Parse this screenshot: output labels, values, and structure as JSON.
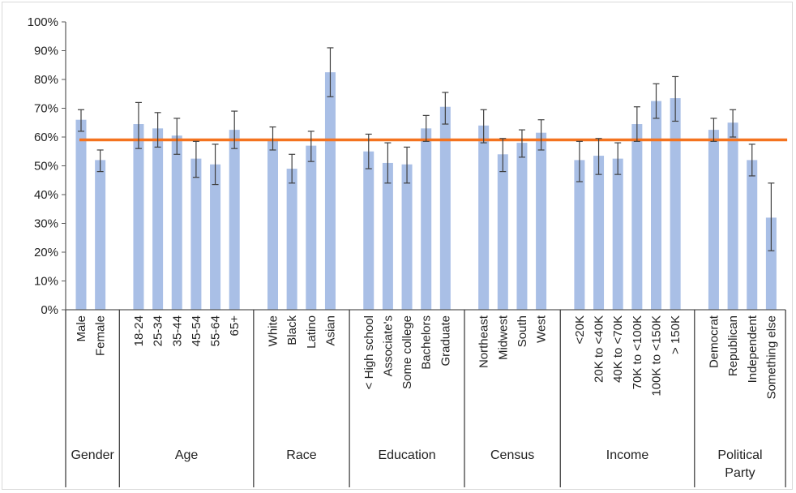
{
  "chart_data": {
    "type": "bar",
    "title": "",
    "xlabel": "",
    "ylabel": "",
    "ylim": [
      0,
      1
    ],
    "yticks": [
      "0%",
      "10%",
      "20%",
      "30%",
      "40%",
      "50%",
      "60%",
      "70%",
      "80%",
      "90%",
      "100%"
    ],
    "grid": false,
    "legend": "none",
    "reference_line": {
      "value": 0.59,
      "color": "#f4731f"
    },
    "bar_color": "#a9bfe6",
    "groups": [
      {
        "label": "Gender",
        "categories": [
          {
            "label": "Male",
            "value": 0.66,
            "err_low": 0.62,
            "err_high": 0.695
          },
          {
            "label": "Female",
            "value": 0.52,
            "err_low": 0.48,
            "err_high": 0.555
          }
        ]
      },
      {
        "label": "Age",
        "categories": [
          {
            "label": "18-24",
            "value": 0.645,
            "err_low": 0.56,
            "err_high": 0.72
          },
          {
            "label": "25-34",
            "value": 0.63,
            "err_low": 0.565,
            "err_high": 0.685
          },
          {
            "label": "35-44",
            "value": 0.605,
            "err_low": 0.54,
            "err_high": 0.665
          },
          {
            "label": "45-54",
            "value": 0.525,
            "err_low": 0.46,
            "err_high": 0.585
          },
          {
            "label": "55-64",
            "value": 0.505,
            "err_low": 0.435,
            "err_high": 0.575
          },
          {
            "label": "65+",
            "value": 0.625,
            "err_low": 0.56,
            "err_high": 0.69
          }
        ]
      },
      {
        "label": "Race",
        "categories": [
          {
            "label": "White",
            "value": 0.59,
            "err_low": 0.555,
            "err_high": 0.635
          },
          {
            "label": "Black",
            "value": 0.49,
            "err_low": 0.44,
            "err_high": 0.54
          },
          {
            "label": "Latino",
            "value": 0.57,
            "err_low": 0.515,
            "err_high": 0.62
          },
          {
            "label": "Asian",
            "value": 0.825,
            "err_low": 0.74,
            "err_high": 0.91
          }
        ]
      },
      {
        "label": "Education",
        "categories": [
          {
            "label": "< High school",
            "value": 0.55,
            "err_low": 0.49,
            "err_high": 0.61
          },
          {
            "label": "Associate's",
            "value": 0.51,
            "err_low": 0.44,
            "err_high": 0.58
          },
          {
            "label": "Some college",
            "value": 0.505,
            "err_low": 0.44,
            "err_high": 0.565
          },
          {
            "label": "Bachelors",
            "value": 0.63,
            "err_low": 0.585,
            "err_high": 0.675
          },
          {
            "label": "Graduate",
            "value": 0.705,
            "err_low": 0.645,
            "err_high": 0.755
          }
        ]
      },
      {
        "label": "Census",
        "categories": [
          {
            "label": "Northeast",
            "value": 0.64,
            "err_low": 0.58,
            "err_high": 0.695
          },
          {
            "label": "Midwest",
            "value": 0.54,
            "err_low": 0.48,
            "err_high": 0.595
          },
          {
            "label": "South",
            "value": 0.58,
            "err_low": 0.53,
            "err_high": 0.625
          },
          {
            "label": "West",
            "value": 0.615,
            "err_low": 0.555,
            "err_high": 0.66
          }
        ]
      },
      {
        "label": "Income",
        "categories": [
          {
            "label": "<20K",
            "value": 0.52,
            "err_low": 0.445,
            "err_high": 0.585
          },
          {
            "label": "20K to <40K",
            "value": 0.535,
            "err_low": 0.47,
            "err_high": 0.595
          },
          {
            "label": "40K to <70K",
            "value": 0.525,
            "err_low": 0.47,
            "err_high": 0.58
          },
          {
            "label": "70K to <100K",
            "value": 0.645,
            "err_low": 0.585,
            "err_high": 0.705
          },
          {
            "label": "100K to <150K",
            "value": 0.725,
            "err_low": 0.665,
            "err_high": 0.785
          },
          {
            "label": "> 150K",
            "value": 0.735,
            "err_low": 0.655,
            "err_high": 0.81
          }
        ]
      },
      {
        "label": "Political Party",
        "label_lines": [
          "Political",
          "Party"
        ],
        "categories": [
          {
            "label": "Democrat",
            "value": 0.625,
            "err_low": 0.585,
            "err_high": 0.665
          },
          {
            "label": "Republican",
            "value": 0.65,
            "err_low": 0.6,
            "err_high": 0.695
          },
          {
            "label": "Independent",
            "value": 0.52,
            "err_low": 0.465,
            "err_high": 0.575
          },
          {
            "label": "Something else",
            "value": 0.32,
            "err_low": 0.205,
            "err_high": 0.44
          }
        ]
      }
    ]
  }
}
